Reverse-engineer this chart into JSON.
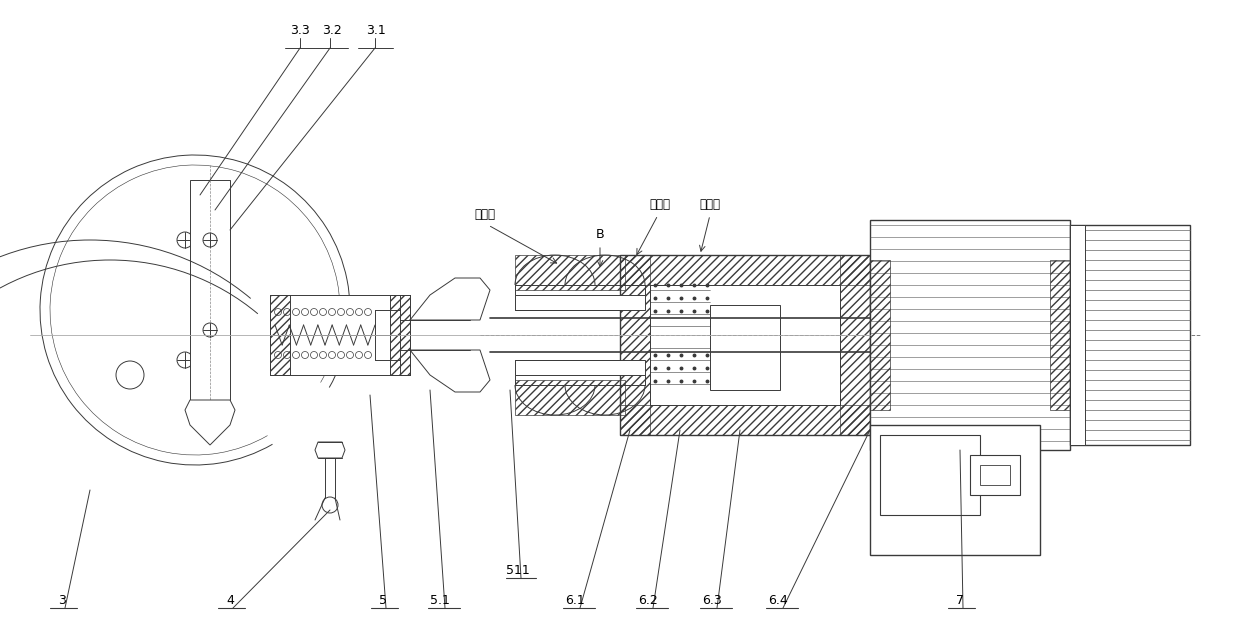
{
  "bg_color": "#ffffff",
  "lc": "#3a3a3a",
  "lw": 0.7,
  "fig_width": 12.4,
  "fig_height": 6.26,
  "dpi": 100,
  "labels": {
    "3_3": "3.3",
    "3_2": "3.2",
    "3_1": "3.1",
    "gao_ya_you_1": "高压油",
    "B": "B",
    "hui_you_kou": "回油口",
    "gao_ya_you_2": "高压油",
    "511": "511",
    "3": "3",
    "4": "4",
    "5": "5",
    "5_1": "5.1",
    "6_1": "6.1",
    "6_2": "6.2",
    "6_3": "6.3",
    "6_4": "6.4",
    "7": "7"
  }
}
